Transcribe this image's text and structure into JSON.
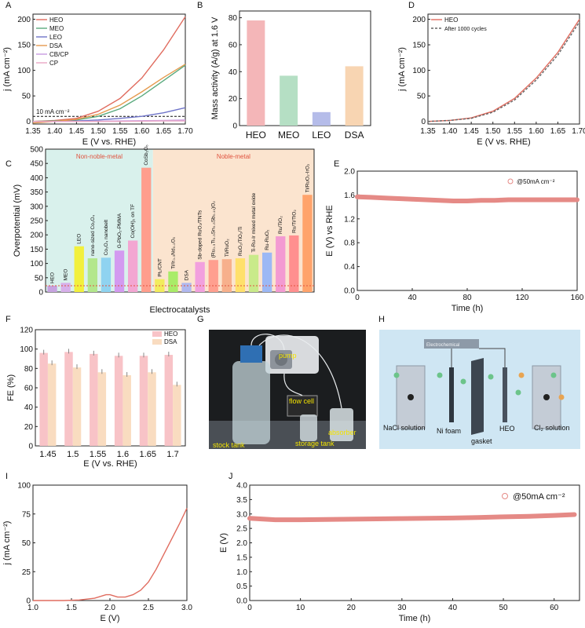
{
  "panel_letters": [
    "A",
    "B",
    "C",
    "D",
    "E",
    "F",
    "G",
    "H",
    "I",
    "J"
  ],
  "chart_data": [
    {
      "panel": "A",
      "type": "line",
      "xlabel": "E (V vs. RHE)",
      "ylabel": "j (mA cm⁻²)",
      "xlim": [
        1.35,
        1.7
      ],
      "ylim": [
        -5,
        210
      ],
      "xticks": [
        "1.35",
        "1.40",
        "1.45",
        "1.50",
        "1.55",
        "1.60",
        "1.65",
        "1.70"
      ],
      "yticks": [
        "0",
        "50",
        "100",
        "150",
        "200"
      ],
      "legend_position": "top-left",
      "reference_line": {
        "y": 10,
        "label": "10 mA cm⁻²"
      },
      "series": [
        {
          "name": "HEO",
          "color": "#e06c5f",
          "x": [
            1.35,
            1.4,
            1.45,
            1.5,
            1.55,
            1.6,
            1.65,
            1.7
          ],
          "y": [
            0,
            2,
            6,
            20,
            45,
            85,
            140,
            205
          ]
        },
        {
          "name": "MEO",
          "color": "#5aaa7e",
          "x": [
            1.35,
            1.4,
            1.45,
            1.5,
            1.55,
            1.6,
            1.65,
            1.7
          ],
          "y": [
            0,
            1,
            3,
            10,
            25,
            50,
            80,
            110
          ]
        },
        {
          "name": "LEO",
          "color": "#6f74c9",
          "x": [
            1.35,
            1.4,
            1.45,
            1.5,
            1.55,
            1.6,
            1.65,
            1.7
          ],
          "y": [
            0,
            0,
            1,
            3,
            6,
            10,
            17,
            27
          ]
        },
        {
          "name": "DSA",
          "color": "#e59a4f",
          "x": [
            1.35,
            1.4,
            1.45,
            1.5,
            1.55,
            1.6,
            1.65,
            1.7
          ],
          "y": [
            -3,
            0,
            4,
            14,
            32,
            58,
            86,
            112
          ]
        },
        {
          "name": "CB/CP",
          "color": "#c89be0",
          "x": [
            1.35,
            1.45,
            1.55,
            1.65,
            1.7
          ],
          "y": [
            0,
            0,
            1,
            2,
            3
          ]
        },
        {
          "name": "CP",
          "color": "#e9a6c4",
          "x": [
            1.35,
            1.45,
            1.55,
            1.65,
            1.7
          ],
          "y": [
            0,
            0,
            0,
            1,
            1
          ]
        }
      ]
    },
    {
      "panel": "B",
      "type": "bar",
      "ylabel": "Mass activity (A/g) at 1.6 V",
      "ylim": [
        0,
        85
      ],
      "yticks": [
        "0",
        "20",
        "40",
        "60",
        "80"
      ],
      "categories": [
        "HEO",
        "MEO",
        "LEO",
        "DSA"
      ],
      "values": [
        78,
        37,
        10,
        44
      ],
      "colors": [
        "#f4b6b8",
        "#b5dfc4",
        "#b5bce9",
        "#f8d5b2"
      ]
    },
    {
      "panel": "D",
      "type": "line",
      "xlabel": "E (V vs. RHE)",
      "ylabel": "j (mA cm⁻²)",
      "xlim": [
        1.35,
        1.7
      ],
      "ylim": [
        -5,
        210
      ],
      "xticks": [
        "1.35",
        "1.40",
        "1.45",
        "1.50",
        "1.55",
        "1.60",
        "1.65",
        "1.70"
      ],
      "yticks": [
        "0",
        "50",
        "100",
        "150",
        "200"
      ],
      "legend_position": "top-left",
      "series": [
        {
          "name": "HEO",
          "color": "#e06c5f",
          "dash": false,
          "x": [
            1.35,
            1.4,
            1.45,
            1.5,
            1.55,
            1.6,
            1.65,
            1.7
          ],
          "y": [
            0,
            2,
            7,
            20,
            45,
            85,
            135,
            200
          ]
        },
        {
          "name": "After 1000 cycles",
          "color": "#666666",
          "dash": true,
          "x": [
            1.35,
            1.4,
            1.45,
            1.5,
            1.55,
            1.6,
            1.65,
            1.7
          ],
          "y": [
            0,
            2,
            6,
            18,
            42,
            81,
            130,
            195
          ]
        }
      ]
    },
    {
      "panel": "C",
      "type": "bar",
      "xlabel": "Electrocatalysts",
      "ylabel": "Overpotential (mV)",
      "ylim": [
        0,
        500
      ],
      "yticks": [
        "0",
        "50",
        "100",
        "150",
        "200",
        "250",
        "300",
        "350",
        "400",
        "450",
        "500"
      ],
      "regions": [
        "Non-noble-metal",
        "Noble-metal"
      ],
      "categories": [
        "HEO",
        "MEO",
        "LEO",
        "nano-sized Co₃O₄",
        "Co₃O₄ nanobelt",
        "G-PbO₂-PMMA",
        "Co(OH)₂ on TF",
        "CoSb₂O₆",
        "Pt₁/CNT",
        "Ti/Ir₀.₃Nd₀.₂Oₓ",
        "DSA",
        "Sb-doped RuO₂/TNTs",
        "(Ru₀.₃Ti₀.₃Sn₀.₃Sb₀.₁₀)O₂",
        "Ti/RuO₂",
        "RuO₂/TiO₂/Ti",
        "Ti-Ru-Ir mixed metal oxide",
        "Ru-RuO₂",
        "Ru/TiO₂",
        "Ru/Ti/TiO₂",
        "Ti/RuO₂-IrO₂"
      ],
      "values": [
        22,
        32,
        160,
        118,
        120,
        145,
        180,
        435,
        45,
        72,
        32,
        105,
        112,
        115,
        118,
        130,
        138,
        195,
        198,
        340
      ],
      "colors": [
        "#c7a3e0",
        "#d7b0ea",
        "#f2f03c",
        "#b3e78c",
        "#8fd3f0",
        "#d39af0",
        "#f3a6d2",
        "#ff9e8d",
        "#f2ec5c",
        "#a9ec68",
        "#b0b8ef",
        "#f2a0de",
        "#ff9f8f",
        "#f7b08c",
        "#ffe06b",
        "#c9ea8a",
        "#9cb8f5",
        "#f39ad2",
        "#ff8f8f",
        "#ffa36b"
      ]
    },
    {
      "panel": "E",
      "type": "scatter",
      "xlabel": "Time (h)",
      "ylabel": "E (V) vs RHE",
      "xlim": [
        0,
        160
      ],
      "ylim": [
        0,
        2.0
      ],
      "xticks": [
        "0",
        "40",
        "80",
        "120",
        "160"
      ],
      "yticks": [
        "0.0",
        "0.4",
        "0.8",
        "1.2",
        "1.6",
        "2.0"
      ],
      "legend": "@50mA cm⁻²",
      "x": [
        0,
        10,
        20,
        30,
        40,
        50,
        60,
        70,
        80,
        90,
        100,
        110,
        120,
        130,
        140,
        150,
        160
      ],
      "y": [
        1.57,
        1.56,
        1.55,
        1.54,
        1.53,
        1.52,
        1.51,
        1.5,
        1.5,
        1.51,
        1.51,
        1.52,
        1.52,
        1.52,
        1.52,
        1.52,
        1.52
      ]
    },
    {
      "panel": "F",
      "type": "bar",
      "xlabel": "E (V vs. RHE)",
      "ylabel": "FE (%)",
      "ylim": [
        0,
        120
      ],
      "yticks": [
        "0",
        "20",
        "40",
        "60",
        "80",
        "100",
        "120"
      ],
      "categories": [
        "1.45",
        "1.5",
        "1.55",
        "1.6",
        "1.65",
        "1.7"
      ],
      "legend_position": "top-right",
      "series": [
        {
          "name": "HEO",
          "color": "#f8c3c7",
          "values": [
            96,
            97,
            95,
            93,
            93,
            94
          ]
        },
        {
          "name": "DSA",
          "color": "#f9dcc0",
          "values": [
            85,
            81,
            76,
            73,
            76,
            63
          ]
        }
      ]
    },
    {
      "panel": "I",
      "type": "line",
      "xlabel": "E (V)",
      "ylabel": "j (mA cm⁻²)",
      "xlim": [
        1.0,
        3.0
      ],
      "ylim": [
        0,
        100
      ],
      "xticks": [
        "1.0",
        "1.5",
        "2.0",
        "2.5",
        "3.0"
      ],
      "yticks": [
        "0",
        "25",
        "50",
        "75",
        "100"
      ],
      "series": [
        {
          "name": "",
          "color": "#e06c5f",
          "x": [
            1.0,
            1.2,
            1.4,
            1.6,
            1.8,
            1.9,
            1.95,
            2.0,
            2.05,
            2.1,
            2.2,
            2.3,
            2.4,
            2.5,
            2.6,
            2.7,
            2.8,
            2.9,
            3.0
          ],
          "y": [
            0,
            0,
            0,
            0.5,
            2,
            4,
            5,
            5,
            4,
            3,
            3,
            5,
            9,
            16,
            27,
            40,
            53,
            66,
            80
          ]
        }
      ]
    },
    {
      "panel": "J",
      "type": "scatter",
      "xlabel": "Time (h)",
      "ylabel": "E (V)",
      "xlim": [
        0,
        65
      ],
      "ylim": [
        0,
        4.0
      ],
      "xticks": [
        "0",
        "10",
        "20",
        "30",
        "40",
        "50",
        "60"
      ],
      "yticks": [
        "0.0",
        "0.5",
        "1.0",
        "1.5",
        "2.0",
        "2.5",
        "3.0",
        "3.5",
        "4.0"
      ],
      "legend": "@50mA cm⁻²",
      "x": [
        0,
        5,
        10,
        15,
        20,
        25,
        30,
        35,
        40,
        45,
        50,
        55,
        60,
        64
      ],
      "y": [
        2.85,
        2.8,
        2.8,
        2.81,
        2.82,
        2.83,
        2.84,
        2.85,
        2.86,
        2.88,
        2.9,
        2.92,
        2.95,
        2.98
      ]
    }
  ],
  "photo_G": {
    "labels": [
      "pump",
      "flow cell",
      "absorber",
      "stock tank",
      "storage tank"
    ]
  },
  "diagram_H": {
    "labels": [
      "Electrochemical",
      "NaCl solution",
      "Ni foam",
      "HEO",
      "gasket",
      "Cl₂ solution"
    ]
  }
}
